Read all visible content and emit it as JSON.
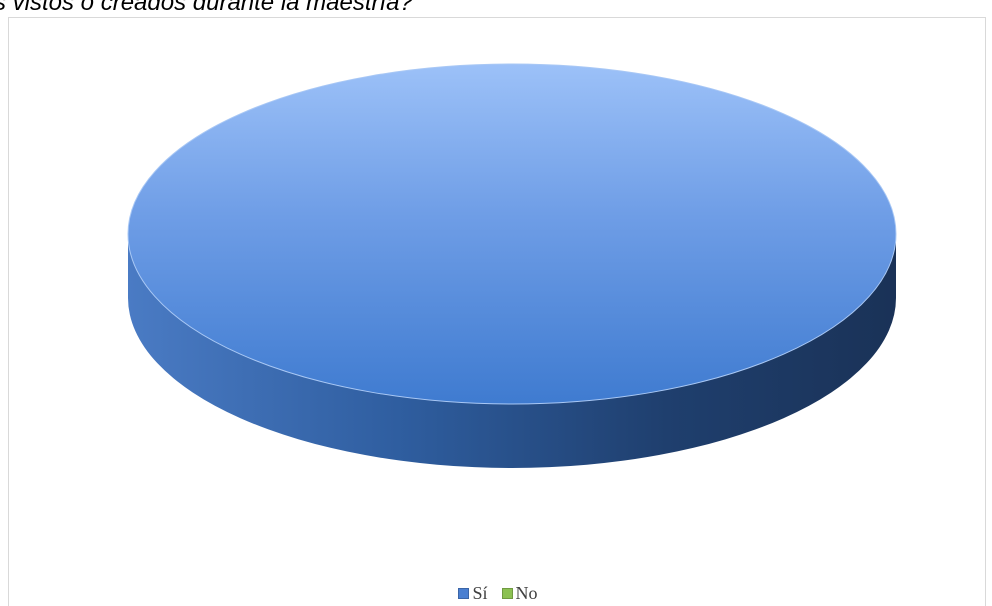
{
  "question": {
    "text": "s vistos o creados durante la maestría?"
  },
  "chart_data": {
    "type": "pie",
    "title": "",
    "style": "3d",
    "categories": [
      "Sí",
      "No"
    ],
    "values": [
      100,
      0
    ],
    "colors": [
      "#4a7fd1",
      "#8cc152"
    ],
    "legend": {
      "position": "bottom",
      "entries": [
        "Sí",
        "No"
      ]
    }
  }
}
